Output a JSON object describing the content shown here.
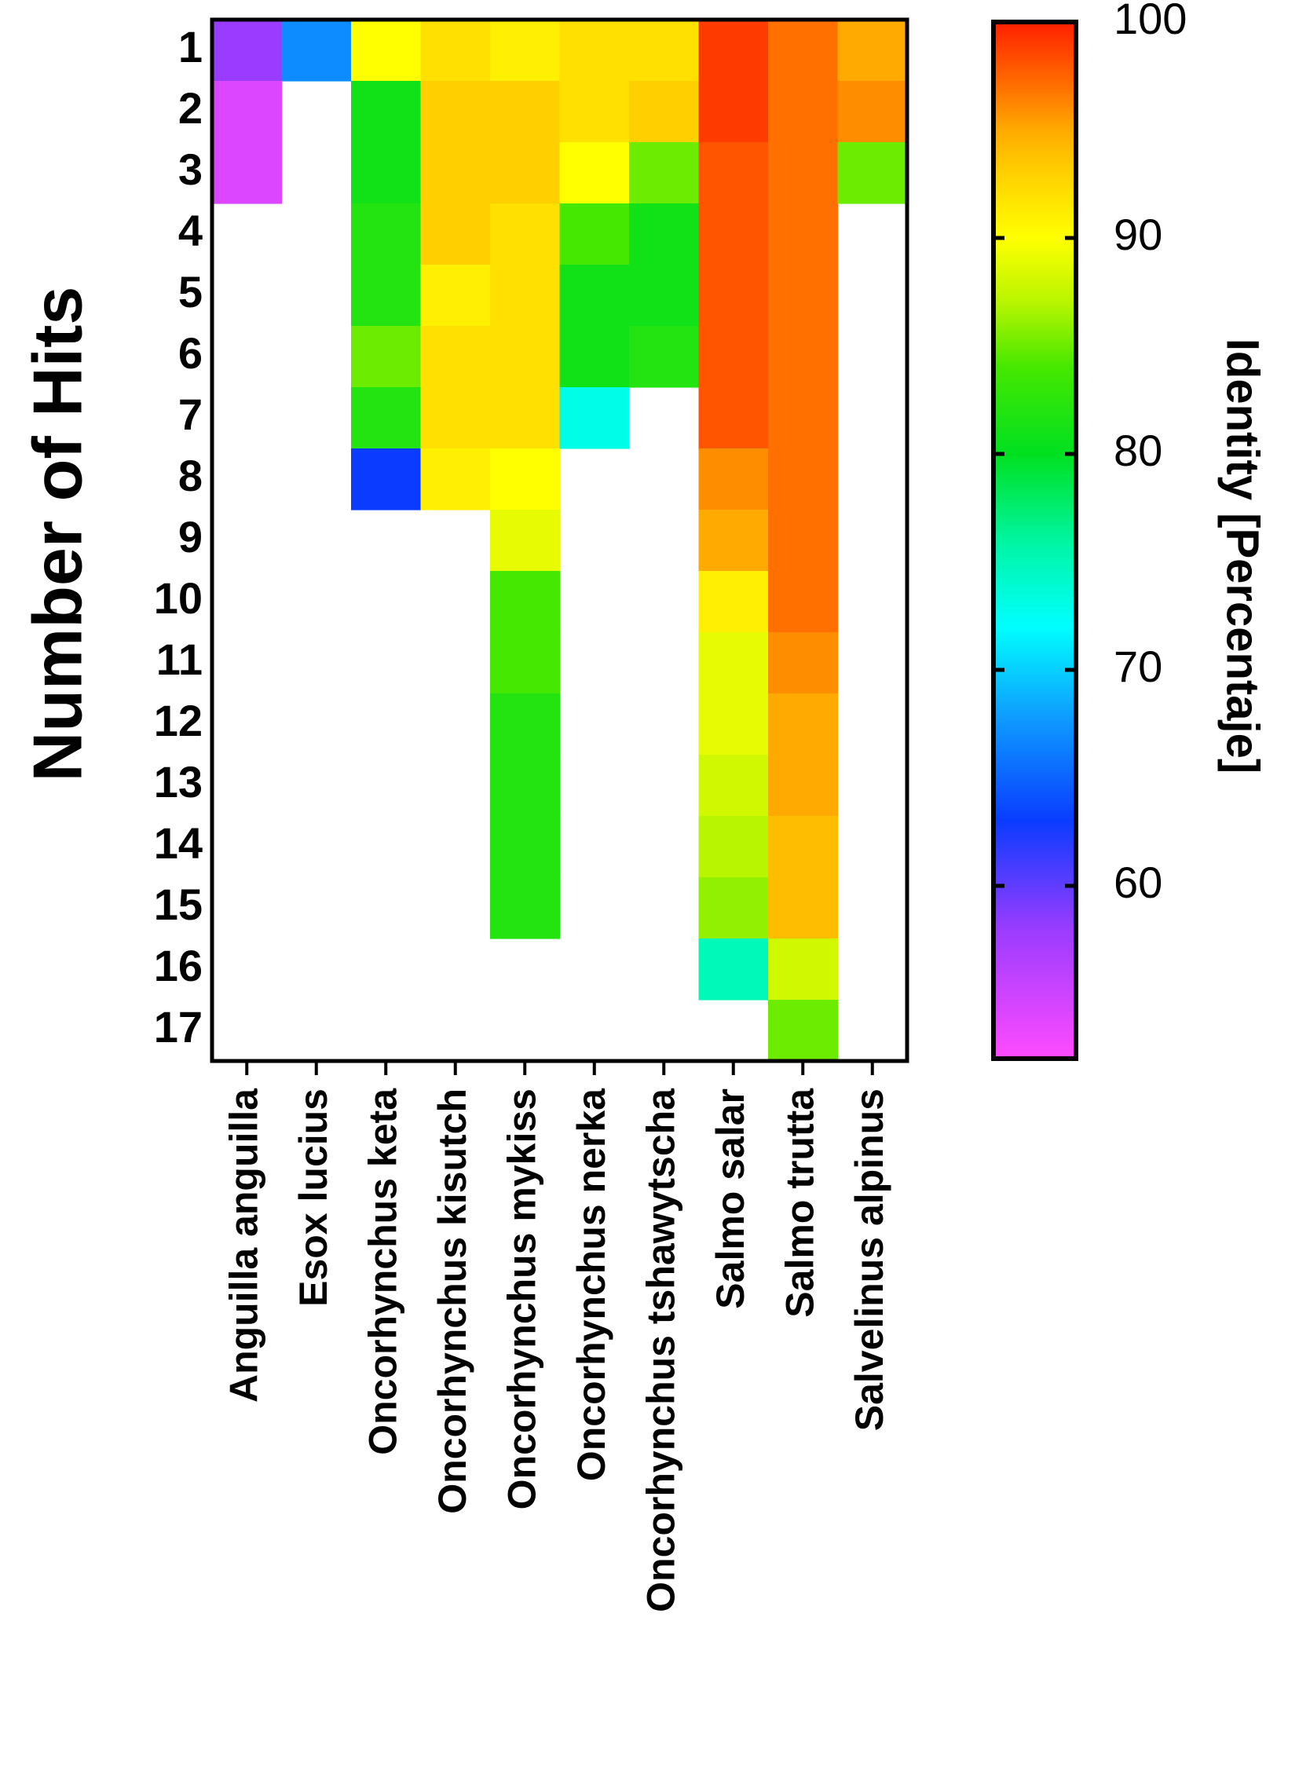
{
  "chart_data": {
    "type": "heatmap",
    "ylabel": "Number of Hits",
    "colorbar": {
      "label": "Identity [Percentaje]",
      "range": [
        52,
        100
      ],
      "ticks": [
        60,
        70,
        80,
        90,
        100
      ],
      "colors": [
        {
          "value": 52,
          "color": "#ff4bff"
        },
        {
          "value": 58,
          "color": "#9a3cff"
        },
        {
          "value": 63,
          "color": "#0a3cff"
        },
        {
          "value": 68,
          "color": "#0ea0ff"
        },
        {
          "value": 72,
          "color": "#00ffff"
        },
        {
          "value": 76,
          "color": "#00f5a0"
        },
        {
          "value": 80,
          "color": "#00e020"
        },
        {
          "value": 84,
          "color": "#45e800"
        },
        {
          "value": 87,
          "color": "#b8f500"
        },
        {
          "value": 90,
          "color": "#ffff00"
        },
        {
          "value": 93,
          "color": "#ffd000"
        },
        {
          "value": 95,
          "color": "#ffaa00"
        },
        {
          "value": 97,
          "color": "#ff7000"
        },
        {
          "value": 100,
          "color": "#ff2000"
        }
      ]
    },
    "rows": [
      "1",
      "2",
      "3",
      "4",
      "5",
      "6",
      "7",
      "8",
      "9",
      "10",
      "11",
      "12",
      "13",
      "14",
      "15",
      "16",
      "17"
    ],
    "columns": [
      "Anguilla anguilla",
      "Esox lucius",
      "Oncorhynchus keta",
      "Oncorhynchus kisutch",
      "Oncorhynchus mykiss",
      "Oncorhynchus nerka",
      "Oncorhynchus tshawytscha",
      "Salmo salar",
      "Salmo trutta",
      "Salvelinus alpinus"
    ],
    "values": [
      [
        58,
        67,
        90,
        92,
        91,
        92,
        92,
        99,
        97,
        95
      ],
      [
        54,
        null,
        81,
        93,
        93,
        92,
        93,
        99,
        97,
        96
      ],
      [
        54,
        null,
        81,
        93,
        93,
        90,
        85,
        98,
        97,
        85
      ],
      [
        null,
        null,
        82,
        93,
        92,
        84,
        81,
        98,
        97,
        null
      ],
      [
        null,
        null,
        82,
        91,
        92,
        81,
        81,
        98,
        97,
        null
      ],
      [
        null,
        null,
        85,
        92,
        92,
        81,
        82,
        98,
        97,
        null
      ],
      [
        null,
        null,
        82,
        92,
        92,
        73,
        null,
        98,
        97,
        null
      ],
      [
        null,
        null,
        63,
        91,
        90,
        null,
        null,
        96,
        97,
        null
      ],
      [
        null,
        null,
        null,
        null,
        89,
        null,
        null,
        95,
        97,
        null
      ],
      [
        null,
        null,
        null,
        null,
        84,
        null,
        null,
        91,
        97,
        null
      ],
      [
        null,
        null,
        null,
        null,
        84,
        null,
        null,
        89,
        96,
        null
      ],
      [
        null,
        null,
        null,
        null,
        82,
        null,
        null,
        89,
        95,
        null
      ],
      [
        null,
        null,
        null,
        null,
        82,
        null,
        null,
        88,
        95,
        null
      ],
      [
        null,
        null,
        null,
        null,
        82,
        null,
        null,
        87,
        94,
        null
      ],
      [
        null,
        null,
        null,
        null,
        82,
        null,
        null,
        86,
        94,
        null
      ],
      [
        null,
        null,
        null,
        null,
        null,
        null,
        null,
        75,
        88,
        null
      ],
      [
        null,
        null,
        null,
        null,
        null,
        null,
        null,
        null,
        85,
        null
      ]
    ]
  }
}
